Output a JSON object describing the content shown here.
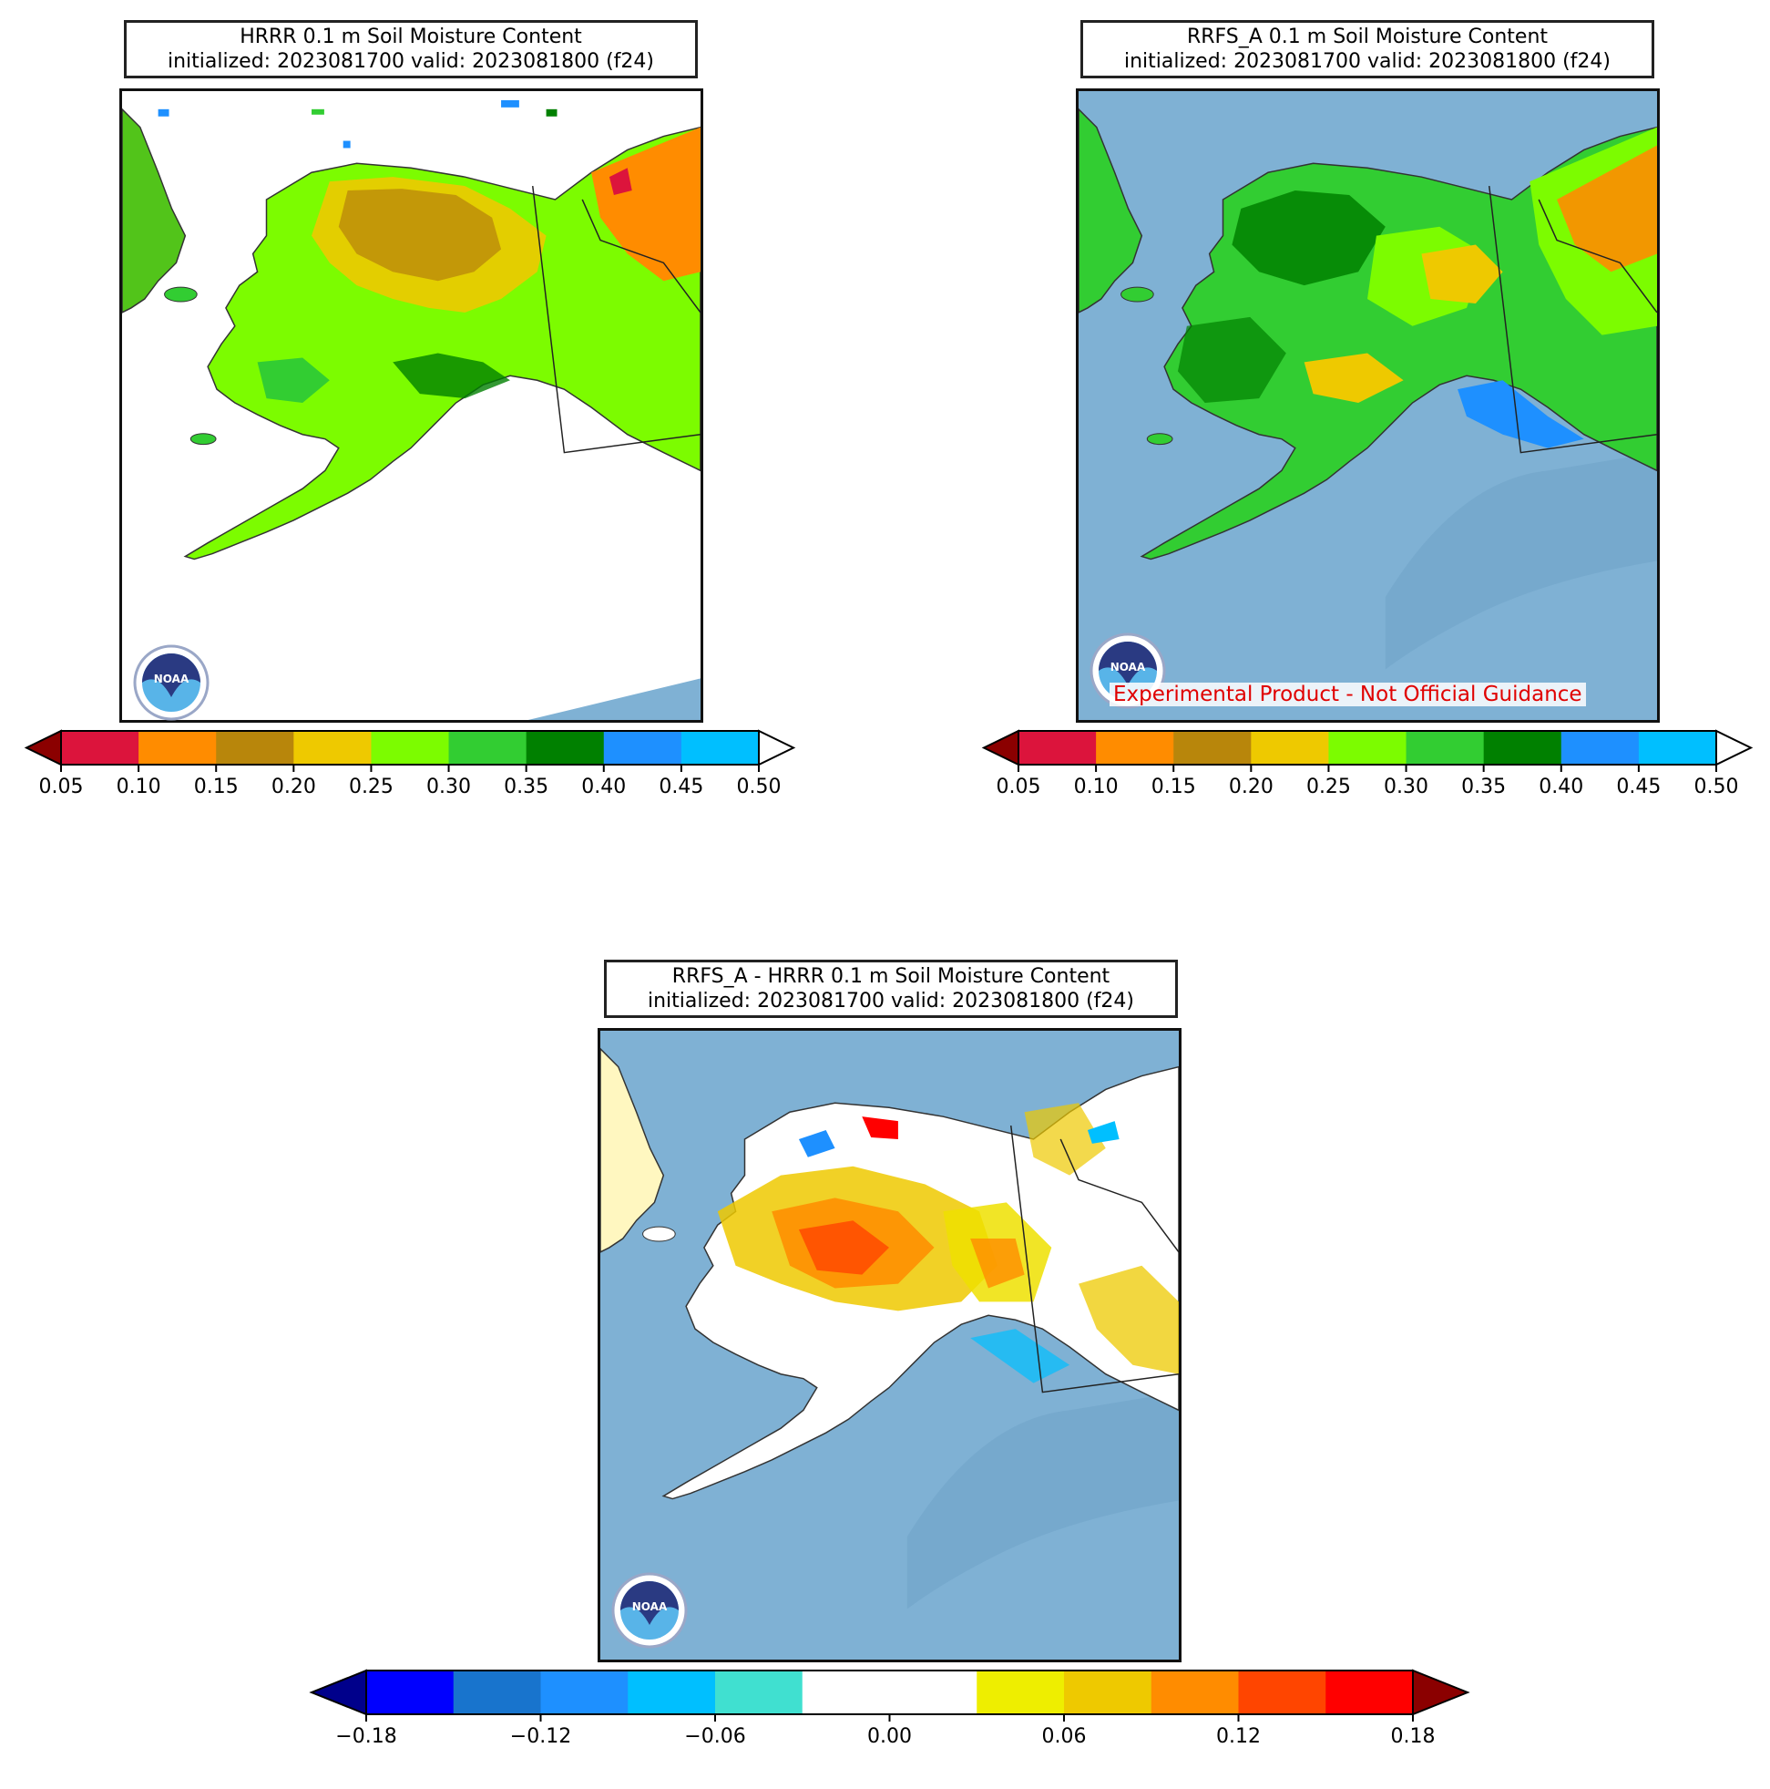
{
  "panels": {
    "hrrr": {
      "title_line1": "HRRR 0.1 m Soil Moisture Content",
      "title_line2": "initialized: 2023081700 valid: 2023081800 (f24)",
      "background": "#ffffff"
    },
    "rrfs": {
      "title_line1": "RRFS_A 0.1 m Soil Moisture Content",
      "title_line2": "initialized: 2023081700 valid: 2023081800 (f24)",
      "disclaimer": "Experimental Product - Not Official Guidance",
      "background": "#7fb1d4"
    },
    "diff": {
      "title_line1": "RRFS_A - HRRR 0.1 m Soil Moisture Content",
      "title_line2": "initialized: 2023081700 valid: 2023081800 (f24)",
      "background": "#7fb1d4"
    }
  },
  "logo": {
    "text": "NOAA",
    "icon": "noaa-logo"
  },
  "colorbar_soil": {
    "ticks": [
      "0.05",
      "0.10",
      "0.15",
      "0.20",
      "0.25",
      "0.30",
      "0.35",
      "0.40",
      "0.45",
      "0.50"
    ],
    "under_color": "#8b0000",
    "over_color": "#ffffff",
    "colors": [
      "#dc143c",
      "#ff8c00",
      "#b8860b",
      "#eec900",
      "#7cfc00",
      "#32cd32",
      "#008000",
      "#1e90ff",
      "#00bfff"
    ]
  },
  "colorbar_diff": {
    "ticks": [
      "−0.18",
      "−0.12",
      "−0.06",
      "0.00",
      "0.06",
      "0.12",
      "0.18"
    ],
    "under_color": "#00008b",
    "over_color": "#8b0000",
    "colors": [
      "#0000ff",
      "#1874cd",
      "#1e90ff",
      "#00bfff",
      "#40e0d0",
      "#ffffff",
      "#ffffff",
      "#eeee00",
      "#eec900",
      "#ff8c00",
      "#ff4500",
      "#ff0000"
    ]
  }
}
